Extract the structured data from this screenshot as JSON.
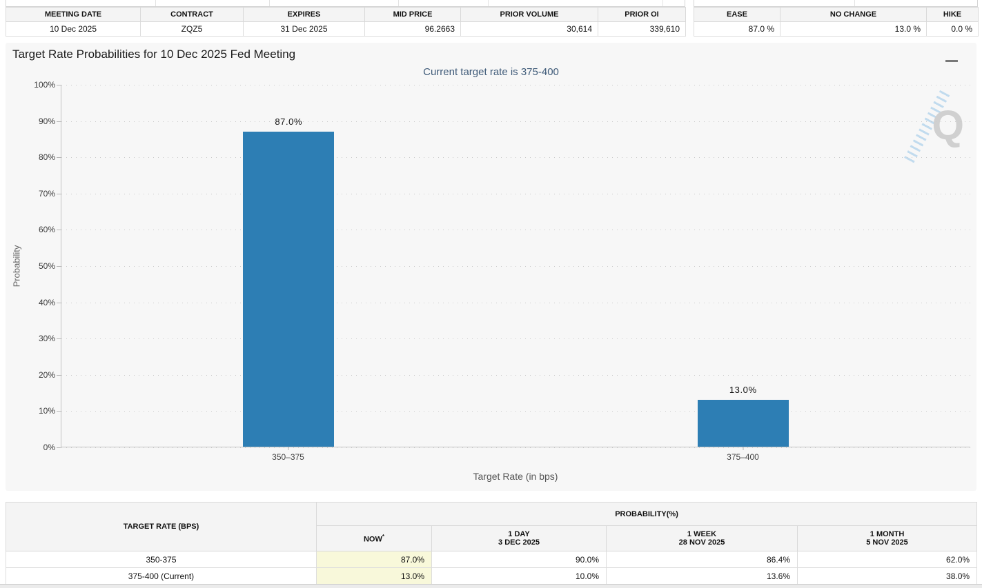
{
  "market_table": {
    "headers": [
      "MEETING DATE",
      "CONTRACT",
      "EXPIRES",
      "MID PRICE",
      "PRIOR VOLUME",
      "PRIOR OI"
    ],
    "values": [
      "10 Dec 2025",
      "ZQZ5",
      "31 Dec 2025",
      "96.2663",
      "30,614",
      "339,610"
    ]
  },
  "summary_table": {
    "headers": [
      "EASE",
      "NO CHANGE",
      "HIKE"
    ],
    "values": [
      "87.0 %",
      "13.0 %",
      "0.0 %"
    ]
  },
  "chart_data": {
    "type": "bar",
    "title": "Target Rate Probabilities for 10 Dec 2025 Fed Meeting",
    "subtitle": "Current target rate is 375-400",
    "categories": [
      "350–375",
      "375–400"
    ],
    "values": [
      87.0,
      13.0
    ],
    "value_labels": [
      "87.0%",
      "13.0%"
    ],
    "xlabel": "Target Rate (in bps)",
    "ylabel": "Probability",
    "ylim": [
      0,
      100
    ],
    "ytick_step": 10,
    "ytick_suffix": "%",
    "grid": "dotted horizontal",
    "legend": "none",
    "bar_color": "#2d7eb4",
    "watermark": "Q"
  },
  "history_table": {
    "rate_header": "TARGET RATE (BPS)",
    "group_header": "PROBABILITY(%)",
    "sub_headers": [
      {
        "line1": "NOW",
        "sup": "*",
        "line2": ""
      },
      {
        "line1": "1 DAY",
        "line2": "3 DEC 2025"
      },
      {
        "line1": "1 WEEK",
        "line2": "28 NOV 2025"
      },
      {
        "line1": "1 MONTH",
        "line2": "5 NOV 2025"
      }
    ],
    "rows": [
      {
        "rate": "350-375",
        "now": "87.0%",
        "day1": "90.0%",
        "week1": "86.4%",
        "month1": "62.0%"
      },
      {
        "rate": "375-400 (Current)",
        "now": "13.0%",
        "day1": "10.0%",
        "week1": "13.6%",
        "month1": "38.0%"
      }
    ]
  },
  "colors": {
    "bar": "#2d7eb4",
    "now_column_bg": "#f8f8da",
    "panel_bg": "#f7f7f7",
    "subtitle": "#3e5a78"
  }
}
